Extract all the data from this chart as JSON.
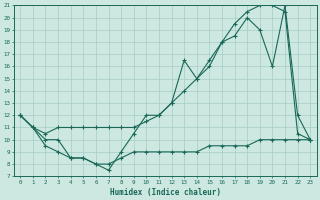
{
  "xlabel": "Humidex (Indice chaleur)",
  "bg_color": "#cce8e0",
  "grid_color": "#a8ccc8",
  "line_color": "#1a6858",
  "xlim": [
    -0.5,
    23.5
  ],
  "ylim": [
    7,
    21
  ],
  "xticks": [
    0,
    1,
    2,
    3,
    4,
    5,
    6,
    7,
    8,
    9,
    10,
    11,
    12,
    13,
    14,
    15,
    16,
    17,
    18,
    19,
    20,
    21,
    22,
    23
  ],
  "yticks": [
    7,
    8,
    9,
    10,
    11,
    12,
    13,
    14,
    15,
    16,
    17,
    18,
    19,
    20,
    21
  ],
  "line1_x": [
    0,
    1,
    2,
    3,
    4,
    5,
    6,
    7,
    8,
    9,
    10,
    11,
    12,
    13,
    14,
    15,
    16,
    17,
    18,
    19,
    20,
    21,
    22,
    23
  ],
  "line1_y": [
    12,
    11,
    10,
    10,
    8.5,
    8.5,
    8,
    8,
    8.5,
    9,
    9,
    9,
    9,
    9,
    9,
    9.5,
    9.5,
    9.5,
    9.5,
    10,
    10,
    10,
    10,
    10
  ],
  "line2_x": [
    0,
    1,
    2,
    3,
    4,
    5,
    6,
    7,
    8,
    9,
    10,
    11,
    12,
    13,
    14,
    15,
    16,
    17,
    18,
    19,
    20,
    21,
    22,
    23
  ],
  "line2_y": [
    12,
    11,
    9.5,
    9,
    8.5,
    8.5,
    8,
    7.5,
    9,
    10.5,
    12,
    12,
    13,
    16.5,
    15,
    16,
    18,
    18.5,
    20,
    19,
    16,
    21,
    12,
    10
  ],
  "line3_x": [
    0,
    1,
    2,
    3,
    4,
    5,
    6,
    7,
    8,
    9,
    10,
    11,
    12,
    13,
    14,
    15,
    16,
    17,
    18,
    19,
    20,
    21,
    22,
    23
  ],
  "line3_y": [
    12,
    11,
    10.5,
    11,
    11,
    11,
    11,
    11,
    11,
    11,
    11.5,
    12,
    13,
    14,
    15,
    16.5,
    18,
    19.5,
    20.5,
    21,
    21,
    20.5,
    10.5,
    10
  ],
  "figsize": [
    3.2,
    2.0
  ],
  "dpi": 100
}
